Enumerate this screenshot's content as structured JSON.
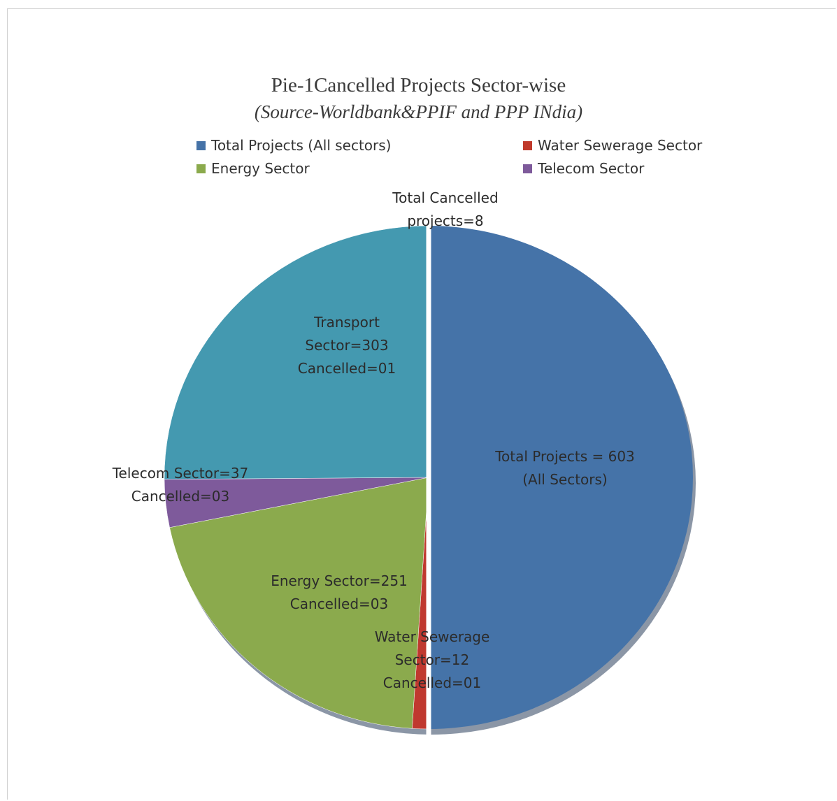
{
  "chart_data": {
    "type": "pie",
    "title": "Pie-1Cancelled Projects Sector-wise",
    "subtitle": "(Source-Worldbank&PPIF and PPP INdia)",
    "legend": {
      "placement": "top",
      "entries": [
        {
          "label": "Total Projects (All sectors)",
          "color": "#4572A7"
        },
        {
          "label": "Water Sewerage Sector",
          "color": "#C0392B"
        },
        {
          "label": "Energy Sector",
          "color": "#8BAA4C"
        },
        {
          "label": "Telecom Sector",
          "color": "#7E5A9B"
        }
      ]
    },
    "slices": [
      {
        "name": "Total Projects (All Sectors)",
        "value": 603,
        "color": "#4573A8",
        "label_lines": [
          "Total Projects = 603",
          "(All Sectors)"
        ]
      },
      {
        "name": "Water Sewerage Sector",
        "value": 12,
        "color": "#C0392F",
        "label_lines": [
          "Water Sewerage",
          "Sector=12",
          "Cancelled=01"
        ]
      },
      {
        "name": "Energy Sector",
        "value": 251,
        "color": "#8BAA4D",
        "label_lines": [
          "Energy Sector=251",
          "Cancelled=03"
        ]
      },
      {
        "name": "Telecom Sector",
        "value": 37,
        "color": "#7E5A9B",
        "label_lines": [
          "Telecom Sector=37",
          "Cancelled=03"
        ]
      },
      {
        "name": "Transport Sector",
        "value": 303,
        "color": "#4499B0",
        "label_lines": [
          "Transport",
          "Sector=303",
          "Cancelled=01"
        ]
      }
    ],
    "annotations": [
      {
        "label_lines": [
          "Total Cancelled",
          "projects=8"
        ]
      }
    ]
  }
}
